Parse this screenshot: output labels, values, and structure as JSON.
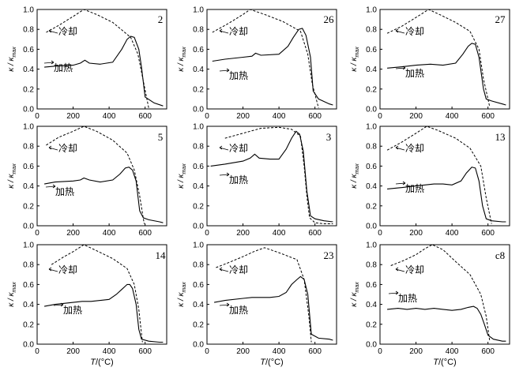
{
  "figure": {
    "ylabel": "κ / κ",
    "ylabel_sub": "max",
    "xlabel_T": "T",
    "xlabel_unit": "/(°C)",
    "cooling_label": "冷却",
    "heating_label": "加热",
    "x_ticks": [
      "0",
      "200",
      "400",
      "600"
    ],
    "y_ticks": [
      "0.0",
      "0.2",
      "0.4",
      "0.6",
      "0.8",
      "1.0"
    ]
  },
  "chart_data": [
    {
      "type": "line",
      "title": "2",
      "xlim": [
        0,
        720
      ],
      "ylim": [
        0,
        1
      ],
      "series": [
        {
          "name": "冷却",
          "style": "dashed",
          "x": [
            50,
            120,
            200,
            260,
            330,
            420,
            520,
            560,
            590,
            620
          ],
          "y": [
            0.77,
            0.84,
            0.93,
            1.0,
            0.95,
            0.87,
            0.72,
            0.55,
            0.28,
            0.01
          ]
        },
        {
          "name": "加热",
          "style": "solid",
          "x": [
            40,
            100,
            200,
            240,
            265,
            290,
            350,
            420,
            470,
            500,
            520,
            540,
            565,
            580,
            600,
            650,
            700
          ],
          "y": [
            0.42,
            0.43,
            0.44,
            0.46,
            0.49,
            0.46,
            0.45,
            0.47,
            0.6,
            0.7,
            0.73,
            0.72,
            0.6,
            0.42,
            0.12,
            0.06,
            0.03
          ]
        }
      ]
    },
    {
      "type": "line",
      "title": "26",
      "xlim": [
        0,
        720
      ],
      "ylim": [
        0,
        1
      ],
      "series": [
        {
          "name": "冷却",
          "style": "dashed",
          "x": [
            30,
            120,
            200,
            240,
            320,
            420,
            520,
            560,
            585,
            620
          ],
          "y": [
            0.77,
            0.86,
            0.95,
            1.0,
            0.95,
            0.88,
            0.78,
            0.55,
            0.25,
            0.01
          ]
        },
        {
          "name": "加热",
          "style": "solid",
          "x": [
            30,
            100,
            200,
            250,
            270,
            300,
            400,
            450,
            480,
            510,
            530,
            550,
            575,
            590,
            620,
            680,
            700
          ],
          "y": [
            0.48,
            0.5,
            0.52,
            0.53,
            0.56,
            0.54,
            0.55,
            0.63,
            0.72,
            0.8,
            0.81,
            0.74,
            0.52,
            0.18,
            0.1,
            0.05,
            0.04
          ]
        }
      ]
    },
    {
      "type": "line",
      "title": "27",
      "xlim": [
        0,
        720
      ],
      "ylim": [
        0,
        1
      ],
      "series": [
        {
          "name": "冷却",
          "style": "dashed",
          "x": [
            40,
            120,
            200,
            270,
            330,
            420,
            500,
            550,
            575,
            610
          ],
          "y": [
            0.76,
            0.83,
            0.92,
            1.0,
            0.95,
            0.87,
            0.78,
            0.6,
            0.3,
            0.02
          ]
        },
        {
          "name": "加热",
          "style": "solid",
          "x": [
            40,
            100,
            200,
            280,
            350,
            420,
            460,
            490,
            510,
            530,
            550,
            575,
            590,
            620,
            680,
            700
          ],
          "y": [
            0.41,
            0.42,
            0.44,
            0.45,
            0.44,
            0.46,
            0.55,
            0.63,
            0.66,
            0.65,
            0.52,
            0.2,
            0.1,
            0.08,
            0.05,
            0.04
          ]
        }
      ]
    },
    {
      "type": "line",
      "title": "5",
      "xlim": [
        0,
        720
      ],
      "ylim": [
        0,
        1
      ],
      "series": [
        {
          "name": "冷却",
          "style": "dashed",
          "x": [
            50,
            120,
            200,
            260,
            330,
            420,
            500,
            540,
            570,
            595
          ],
          "y": [
            0.81,
            0.89,
            0.95,
            1.0,
            0.95,
            0.86,
            0.73,
            0.56,
            0.3,
            0.02
          ]
        },
        {
          "name": "加热",
          "style": "solid",
          "x": [
            40,
            100,
            200,
            240,
            260,
            290,
            350,
            420,
            460,
            490,
            510,
            530,
            550,
            570,
            590,
            620,
            680,
            700
          ],
          "y": [
            0.42,
            0.44,
            0.45,
            0.46,
            0.48,
            0.46,
            0.44,
            0.46,
            0.52,
            0.58,
            0.59,
            0.56,
            0.45,
            0.15,
            0.08,
            0.06,
            0.04,
            0.03
          ]
        }
      ]
    },
    {
      "type": "line",
      "title": "3",
      "xlim": [
        0,
        720
      ],
      "ylim": [
        0,
        1
      ],
      "series": [
        {
          "name": "冷却",
          "style": "dashed",
          "x": [
            100,
            200,
            300,
            400,
            470,
            520,
            540,
            555,
            570,
            600,
            650,
            700
          ],
          "y": [
            0.88,
            0.93,
            0.98,
            0.99,
            0.97,
            0.9,
            0.6,
            0.3,
            0.08,
            0.03,
            0.02,
            0.02
          ]
        },
        {
          "name": "加热",
          "style": "solid",
          "x": [
            20,
            100,
            200,
            240,
            265,
            290,
            350,
            400,
            440,
            470,
            495,
            515,
            535,
            555,
            575,
            600,
            650,
            700
          ],
          "y": [
            0.6,
            0.62,
            0.65,
            0.68,
            0.72,
            0.68,
            0.67,
            0.67,
            0.77,
            0.88,
            0.95,
            0.92,
            0.75,
            0.35,
            0.1,
            0.07,
            0.05,
            0.04
          ]
        }
      ]
    },
    {
      "type": "line",
      "title": "13",
      "xlim": [
        0,
        720
      ],
      "ylim": [
        0,
        1
      ],
      "series": [
        {
          "name": "冷却",
          "style": "dashed",
          "x": [
            40,
            120,
            200,
            260,
            320,
            420,
            500,
            560,
            590,
            620
          ],
          "y": [
            0.76,
            0.84,
            0.93,
            1.0,
            0.96,
            0.88,
            0.78,
            0.6,
            0.28,
            0.02
          ]
        },
        {
          "name": "加热",
          "style": "solid",
          "x": [
            40,
            100,
            200,
            250,
            300,
            350,
            400,
            450,
            480,
            510,
            530,
            550,
            570,
            590,
            620,
            680,
            700
          ],
          "y": [
            0.37,
            0.38,
            0.4,
            0.41,
            0.42,
            0.42,
            0.41,
            0.45,
            0.53,
            0.59,
            0.58,
            0.45,
            0.2,
            0.07,
            0.05,
            0.04,
            0.04
          ]
        }
      ]
    },
    {
      "type": "line",
      "title": "14",
      "xlim": [
        0,
        720
      ],
      "ylim": [
        0,
        1
      ],
      "series": [
        {
          "name": "冷却",
          "style": "dashed",
          "x": [
            80,
            150,
            200,
            260,
            330,
            420,
            500,
            540,
            565,
            585
          ],
          "y": [
            0.8,
            0.88,
            0.93,
            1.0,
            0.94,
            0.86,
            0.76,
            0.6,
            0.35,
            0.02
          ]
        },
        {
          "name": "加热",
          "style": "solid",
          "x": [
            40,
            100,
            200,
            250,
            300,
            350,
            400,
            440,
            470,
            500,
            515,
            530,
            550,
            565,
            580,
            620,
            680,
            700
          ],
          "y": [
            0.38,
            0.4,
            0.42,
            0.43,
            0.43,
            0.44,
            0.45,
            0.5,
            0.55,
            0.6,
            0.6,
            0.56,
            0.4,
            0.15,
            0.05,
            0.03,
            0.02,
            0.02
          ]
        }
      ]
    },
    {
      "type": "line",
      "title": "23",
      "xlim": [
        0,
        720
      ],
      "ylim": [
        0,
        1
      ],
      "series": [
        {
          "name": "冷却",
          "style": "dashed",
          "x": [
            50,
            120,
            200,
            260,
            320,
            400,
            500,
            540,
            565,
            580
          ],
          "y": [
            0.77,
            0.82,
            0.88,
            0.93,
            0.97,
            0.92,
            0.85,
            0.65,
            0.3,
            0.02
          ]
        },
        {
          "name": "加热",
          "style": "solid",
          "x": [
            40,
            100,
            200,
            250,
            300,
            350,
            400,
            440,
            470,
            500,
            520,
            540,
            560,
            580,
            620,
            680,
            700
          ],
          "y": [
            0.42,
            0.44,
            0.46,
            0.47,
            0.47,
            0.47,
            0.48,
            0.52,
            0.6,
            0.65,
            0.68,
            0.65,
            0.5,
            0.1,
            0.06,
            0.05,
            0.04
          ]
        }
      ]
    },
    {
      "type": "line",
      "title": "c8",
      "xlim": [
        0,
        720
      ],
      "ylim": [
        0,
        1
      ],
      "series": [
        {
          "name": "冷却",
          "style": "dashed",
          "x": [
            60,
            130,
            200,
            250,
            290,
            350,
            420,
            500,
            560,
            590,
            610
          ],
          "y": [
            0.79,
            0.84,
            0.9,
            0.96,
            1.0,
            0.95,
            0.83,
            0.7,
            0.5,
            0.28,
            0.03
          ]
        },
        {
          "name": "加热",
          "style": "solid",
          "x": [
            40,
            100,
            150,
            200,
            250,
            300,
            350,
            400,
            450,
            490,
            520,
            540,
            560,
            580,
            600,
            630,
            680,
            700
          ],
          "y": [
            0.35,
            0.36,
            0.35,
            0.36,
            0.35,
            0.36,
            0.35,
            0.34,
            0.35,
            0.37,
            0.38,
            0.36,
            0.3,
            0.2,
            0.09,
            0.05,
            0.03,
            0.03
          ]
        }
      ]
    }
  ]
}
